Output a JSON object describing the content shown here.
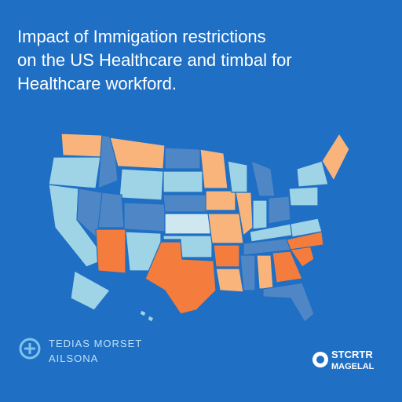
{
  "title": {
    "lines": [
      "Impact of Immigation restrictions",
      "on the US Healthcare and timbal for",
      "Healthcare workford."
    ]
  },
  "footer_left": {
    "lines": [
      "TEDIAS MORSET",
      "AILSONA"
    ]
  },
  "footer_right": {
    "lines": [
      "STCRTR",
      "MAGELAL"
    ]
  }
}
